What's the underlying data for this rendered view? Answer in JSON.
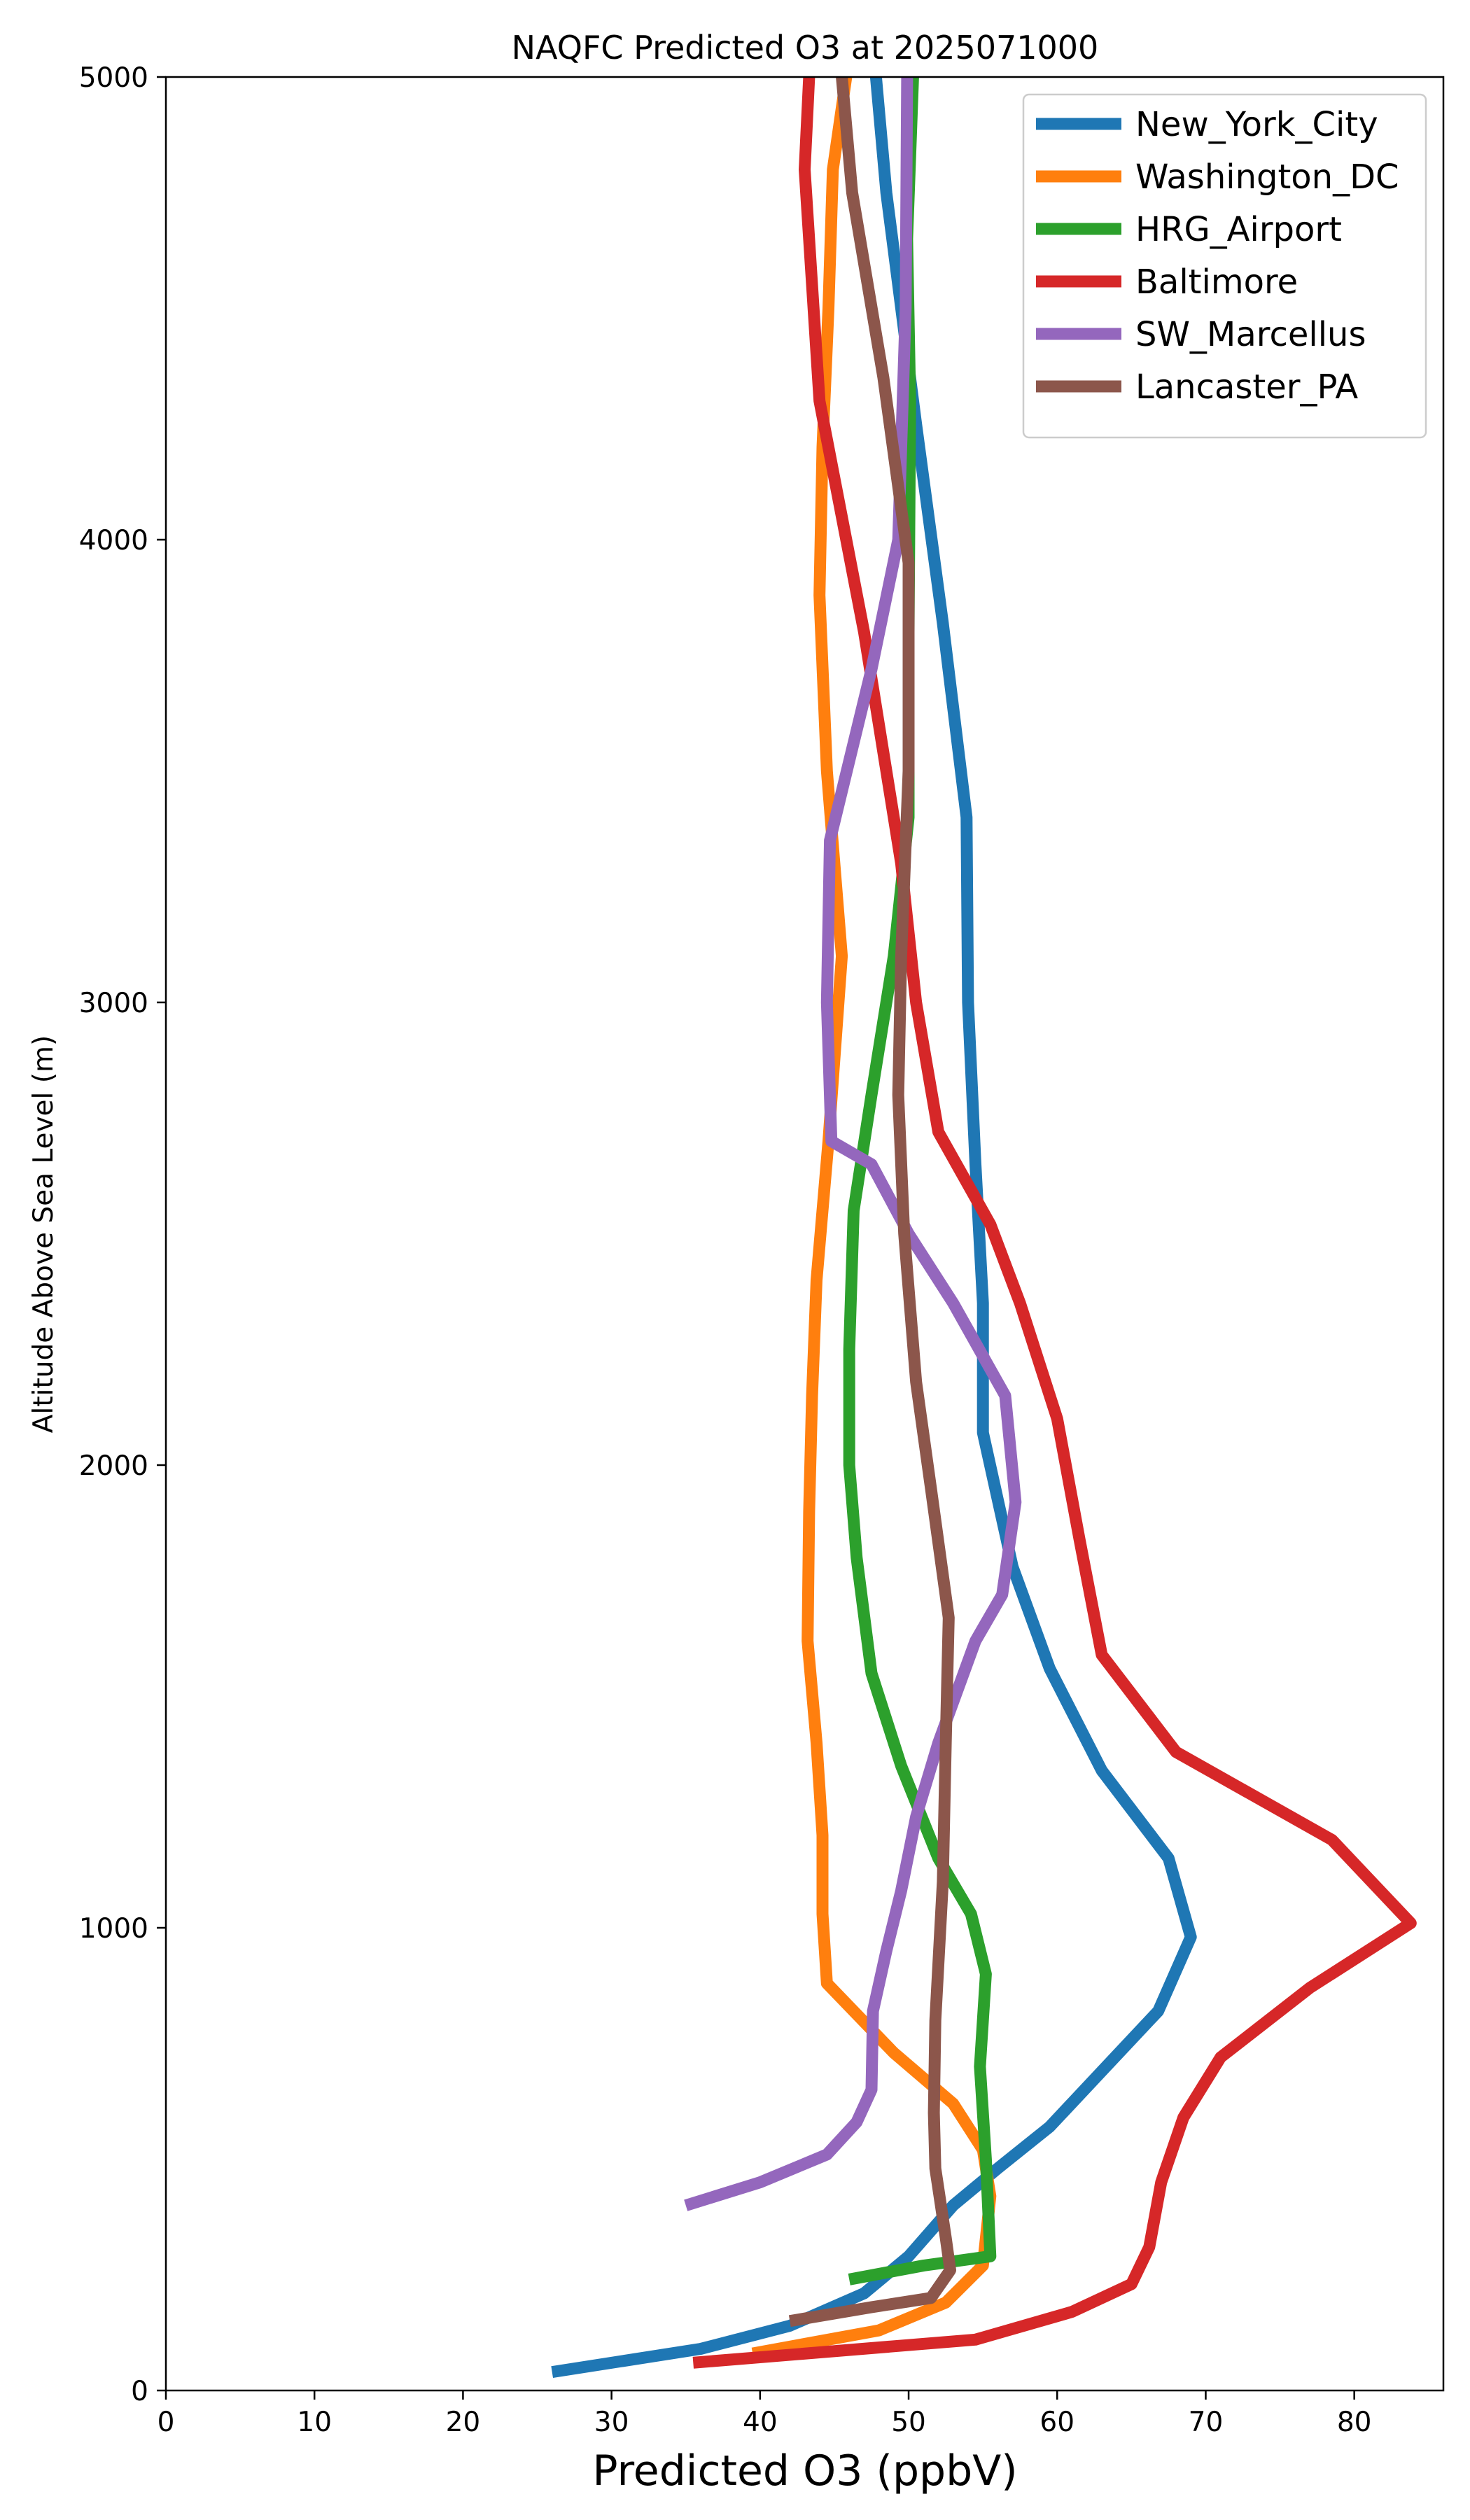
{
  "chart_data": {
    "type": "line",
    "title": "NAQFC Predicted O3 at 2025071000",
    "xlabel": "Predicted O3 (ppbV)",
    "ylabel": "Altitude Above Sea Level (m)",
    "xlim": [
      0,
      86
    ],
    "ylim": [
      0,
      5000
    ],
    "xticks": [
      0,
      10,
      20,
      30,
      40,
      50,
      60,
      70,
      80
    ],
    "yticks": [
      0,
      1000,
      2000,
      3000,
      4000,
      5000
    ],
    "grid": false,
    "legend_position": "top-right",
    "series": [
      {
        "name": "New_York_City",
        "color": "#1f77b4",
        "points": [
          [
            26,
            40
          ],
          [
            36,
            90
          ],
          [
            42,
            140
          ],
          [
            47,
            210
          ],
          [
            50,
            290
          ],
          [
            53,
            400
          ],
          [
            56,
            480
          ],
          [
            59.5,
            570
          ],
          [
            63,
            690
          ],
          [
            66.8,
            820
          ],
          [
            69,
            980
          ],
          [
            67.5,
            1150
          ],
          [
            63,
            1340
          ],
          [
            59.5,
            1560
          ],
          [
            57,
            1780
          ],
          [
            55,
            2070
          ],
          [
            55,
            2350
          ],
          [
            54.5,
            2650
          ],
          [
            54,
            3000
          ],
          [
            53.9,
            3400
          ],
          [
            52.3,
            3820
          ],
          [
            50.5,
            4250
          ],
          [
            48.5,
            4750
          ],
          [
            47.8,
            5000
          ]
        ]
      },
      {
        "name": "Washington_DC",
        "color": "#ff7f0e",
        "points": [
          [
            39.5,
            80
          ],
          [
            48,
            130
          ],
          [
            52.5,
            190
          ],
          [
            55,
            270
          ],
          [
            55.5,
            420
          ],
          [
            55,
            520
          ],
          [
            53,
            620
          ],
          [
            49,
            730
          ],
          [
            44.5,
            880
          ],
          [
            44.2,
            1030
          ],
          [
            44.2,
            1200
          ],
          [
            43.8,
            1400
          ],
          [
            43.2,
            1620
          ],
          [
            43.3,
            1900
          ],
          [
            43.5,
            2150
          ],
          [
            43.8,
            2400
          ],
          [
            44.6,
            2700
          ],
          [
            45.5,
            3100
          ],
          [
            44.5,
            3500
          ],
          [
            44,
            3880
          ],
          [
            44.2,
            4200
          ],
          [
            44.6,
            4500
          ],
          [
            44.9,
            4800
          ],
          [
            45.8,
            5000
          ]
        ]
      },
      {
        "name": "HRG_Airport",
        "color": "#2ca02c",
        "points": [
          [
            46,
            240
          ],
          [
            51,
            270
          ],
          [
            55.5,
            290
          ],
          [
            55.2,
            500
          ],
          [
            54.8,
            700
          ],
          [
            55.2,
            900
          ],
          [
            54.2,
            1030
          ],
          [
            52,
            1150
          ],
          [
            49.5,
            1350
          ],
          [
            47.5,
            1550
          ],
          [
            46.5,
            1800
          ],
          [
            46,
            2000
          ],
          [
            46,
            2250
          ],
          [
            46.3,
            2550
          ],
          [
            47.5,
            2800
          ],
          [
            49,
            3100
          ],
          [
            50,
            3400
          ],
          [
            50,
            3800
          ],
          [
            50.1,
            4300
          ],
          [
            49.9,
            4650
          ],
          [
            50.3,
            5000
          ]
        ]
      },
      {
        "name": "Baltimore",
        "color": "#d62728",
        "points": [
          [
            35.5,
            60
          ],
          [
            54.5,
            110
          ],
          [
            61,
            170
          ],
          [
            65,
            230
          ],
          [
            66.2,
            310
          ],
          [
            67,
            450
          ],
          [
            68.5,
            590
          ],
          [
            71,
            720
          ],
          [
            77,
            870
          ],
          [
            83.8,
            1010
          ],
          [
            78.5,
            1190
          ],
          [
            68,
            1380
          ],
          [
            63,
            1590
          ],
          [
            61.5,
            1840
          ],
          [
            60,
            2100
          ],
          [
            57.5,
            2350
          ],
          [
            55.5,
            2520
          ],
          [
            52,
            2720
          ],
          [
            50.5,
            3000
          ],
          [
            49.5,
            3300
          ],
          [
            47,
            3800
          ],
          [
            44,
            4300
          ],
          [
            43,
            4800
          ],
          [
            43.3,
            5000
          ]
        ]
      },
      {
        "name": "SW_Marcellus",
        "color": "#9467bd",
        "points": [
          [
            35,
            400
          ],
          [
            40,
            450
          ],
          [
            44.5,
            510
          ],
          [
            46.5,
            580
          ],
          [
            47.5,
            650
          ],
          [
            47.6,
            820
          ],
          [
            48.5,
            950
          ],
          [
            49.5,
            1080
          ],
          [
            50.5,
            1240
          ],
          [
            52,
            1400
          ],
          [
            54.5,
            1620
          ],
          [
            56.3,
            1720
          ],
          [
            57.2,
            1920
          ],
          [
            56.5,
            2150
          ],
          [
            53,
            2350
          ],
          [
            50,
            2500
          ],
          [
            47.5,
            2650
          ],
          [
            44.8,
            2700
          ],
          [
            44.5,
            3000
          ],
          [
            44.7,
            3350
          ],
          [
            47.5,
            3720
          ],
          [
            49.3,
            4000
          ],
          [
            49.8,
            4500
          ],
          [
            49.9,
            5000
          ]
        ]
      },
      {
        "name": "Lancaster_PA",
        "color": "#8c564b",
        "points": [
          [
            42,
            150
          ],
          [
            47.5,
            180
          ],
          [
            51.5,
            200
          ],
          [
            52.8,
            260
          ],
          [
            52.5,
            330
          ],
          [
            51.8,
            480
          ],
          [
            51.7,
            600
          ],
          [
            51.8,
            800
          ],
          [
            52.3,
            1100
          ],
          [
            52.5,
            1400
          ],
          [
            52.7,
            1670
          ],
          [
            51.5,
            1950
          ],
          [
            50.5,
            2180
          ],
          [
            49.7,
            2500
          ],
          [
            49.3,
            2800
          ],
          [
            49.5,
            3100
          ],
          [
            50,
            3500
          ],
          [
            50,
            3950
          ],
          [
            48.3,
            4350
          ],
          [
            46.2,
            4750
          ],
          [
            45.5,
            5000
          ]
        ]
      }
    ]
  }
}
